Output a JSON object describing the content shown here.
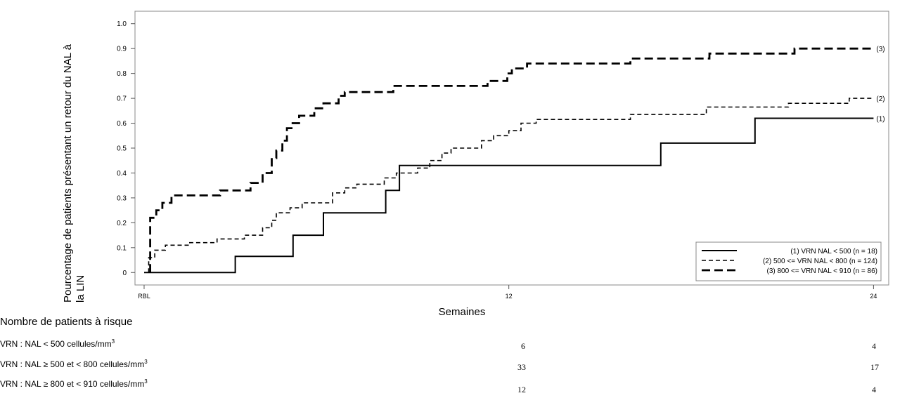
{
  "chart_data": {
    "type": "line",
    "step": true,
    "xlabel": "Semaines",
    "ylabel_line1": "Pourcentage de patients présentant un retour du NAL à",
    "ylabel_line2": "la LIN",
    "xticks": [
      {
        "value": 0,
        "label": "RBL"
      },
      {
        "value": 12,
        "label": "12"
      },
      {
        "value": 24,
        "label": "24"
      }
    ],
    "xlim": [
      -0.3,
      24.5
    ],
    "ylim": [
      -0.05,
      1.05
    ],
    "yticks": [
      {
        "value": 0,
        "label": "0"
      },
      {
        "value": 0.1,
        "label": "0.1"
      },
      {
        "value": 0.2,
        "label": "0.2"
      },
      {
        "value": 0.3,
        "label": "0.3"
      },
      {
        "value": 0.4,
        "label": "0.4"
      },
      {
        "value": 0.5,
        "label": "0.5"
      },
      {
        "value": 0.6,
        "label": "0.6"
      },
      {
        "value": 0.7,
        "label": "0.7"
      },
      {
        "value": 0.8,
        "label": "0.8"
      },
      {
        "value": 0.9,
        "label": "0.9"
      },
      {
        "value": 1.0,
        "label": "1.0"
      }
    ],
    "grid": false,
    "legend_position": "bottom-right",
    "series": [
      {
        "name": "(1) VRN NAL < 500 (n = 18)",
        "end_label": "(1)",
        "style": "solid",
        "points": [
          [
            0,
            0
          ],
          [
            3,
            0
          ],
          [
            3,
            0.065
          ],
          [
            4.9,
            0.065
          ],
          [
            4.9,
            0.15
          ],
          [
            5.9,
            0.15
          ],
          [
            5.9,
            0.24
          ],
          [
            7.95,
            0.24
          ],
          [
            7.95,
            0.33
          ],
          [
            8.4,
            0.33
          ],
          [
            8.4,
            0.43
          ],
          [
            17,
            0.43
          ],
          [
            17,
            0.52
          ],
          [
            20.1,
            0.52
          ],
          [
            20.1,
            0.62
          ],
          [
            24,
            0.62
          ]
        ]
      },
      {
        "name": "(2) 500 <= VRN NAL < 800 (n = 124)",
        "end_label": "(2)",
        "style": "short-dash",
        "points": [
          [
            0.15,
            0
          ],
          [
            0.15,
            0.06
          ],
          [
            0.35,
            0.06
          ],
          [
            0.35,
            0.09
          ],
          [
            0.7,
            0.09
          ],
          [
            0.7,
            0.11
          ],
          [
            1.5,
            0.11
          ],
          [
            1.5,
            0.12
          ],
          [
            2.4,
            0.12
          ],
          [
            2.4,
            0.135
          ],
          [
            3.3,
            0.135
          ],
          [
            3.3,
            0.15
          ],
          [
            3.9,
            0.15
          ],
          [
            3.9,
            0.18
          ],
          [
            4.2,
            0.18
          ],
          [
            4.2,
            0.21
          ],
          [
            4.35,
            0.21
          ],
          [
            4.35,
            0.24
          ],
          [
            4.8,
            0.24
          ],
          [
            4.8,
            0.26
          ],
          [
            5.2,
            0.26
          ],
          [
            5.2,
            0.28
          ],
          [
            6.2,
            0.28
          ],
          [
            6.2,
            0.32
          ],
          [
            6.6,
            0.32
          ],
          [
            6.6,
            0.34
          ],
          [
            7.0,
            0.34
          ],
          [
            7.0,
            0.355
          ],
          [
            7.9,
            0.355
          ],
          [
            7.9,
            0.38
          ],
          [
            8.3,
            0.38
          ],
          [
            8.3,
            0.4
          ],
          [
            9.0,
            0.4
          ],
          [
            9.0,
            0.42
          ],
          [
            9.4,
            0.42
          ],
          [
            9.4,
            0.45
          ],
          [
            9.8,
            0.45
          ],
          [
            9.8,
            0.48
          ],
          [
            10.1,
            0.48
          ],
          [
            10.1,
            0.5
          ],
          [
            11.1,
            0.5
          ],
          [
            11.1,
            0.53
          ],
          [
            11.5,
            0.53
          ],
          [
            11.5,
            0.55
          ],
          [
            12.0,
            0.55
          ],
          [
            12.0,
            0.57
          ],
          [
            12.4,
            0.57
          ],
          [
            12.4,
            0.6
          ],
          [
            12.9,
            0.6
          ],
          [
            12.9,
            0.615
          ],
          [
            16.0,
            0.615
          ],
          [
            16.0,
            0.635
          ],
          [
            18.5,
            0.635
          ],
          [
            18.5,
            0.665
          ],
          [
            21.2,
            0.665
          ],
          [
            21.2,
            0.68
          ],
          [
            23.2,
            0.68
          ],
          [
            23.2,
            0.7
          ],
          [
            24,
            0.7
          ]
        ]
      },
      {
        "name": "(3) 800 <= VRN NAL < 910 (n = 86)",
        "end_label": "(3)",
        "style": "long-dash",
        "points": [
          [
            0.2,
            0
          ],
          [
            0.2,
            0.22
          ],
          [
            0.4,
            0.22
          ],
          [
            0.4,
            0.25
          ],
          [
            0.6,
            0.25
          ],
          [
            0.6,
            0.28
          ],
          [
            0.9,
            0.28
          ],
          [
            0.9,
            0.31
          ],
          [
            2.5,
            0.31
          ],
          [
            2.5,
            0.33
          ],
          [
            3.5,
            0.33
          ],
          [
            3.5,
            0.36
          ],
          [
            3.9,
            0.36
          ],
          [
            3.9,
            0.4
          ],
          [
            4.2,
            0.4
          ],
          [
            4.2,
            0.46
          ],
          [
            4.35,
            0.46
          ],
          [
            4.35,
            0.49
          ],
          [
            4.55,
            0.49
          ],
          [
            4.55,
            0.53
          ],
          [
            4.7,
            0.53
          ],
          [
            4.7,
            0.58
          ],
          [
            4.85,
            0.58
          ],
          [
            4.85,
            0.6
          ],
          [
            5.1,
            0.6
          ],
          [
            5.1,
            0.63
          ],
          [
            5.6,
            0.63
          ],
          [
            5.6,
            0.66
          ],
          [
            5.9,
            0.66
          ],
          [
            5.9,
            0.68
          ],
          [
            6.4,
            0.68
          ],
          [
            6.4,
            0.71
          ],
          [
            6.6,
            0.71
          ],
          [
            6.6,
            0.725
          ],
          [
            8.2,
            0.725
          ],
          [
            8.2,
            0.75
          ],
          [
            11.3,
            0.75
          ],
          [
            11.3,
            0.77
          ],
          [
            11.95,
            0.77
          ],
          [
            11.95,
            0.8
          ],
          [
            12.1,
            0.8
          ],
          [
            12.1,
            0.82
          ],
          [
            12.6,
            0.82
          ],
          [
            12.6,
            0.84
          ],
          [
            16.0,
            0.84
          ],
          [
            16.0,
            0.86
          ],
          [
            18.6,
            0.86
          ],
          [
            18.6,
            0.88
          ],
          [
            21.4,
            0.88
          ],
          [
            21.4,
            0.9
          ],
          [
            24,
            0.9
          ]
        ]
      }
    ]
  },
  "risk_table": {
    "title": "Nombre de patients à risque",
    "rows": [
      {
        "label": "VRN : NAL < 500 cellules/mm",
        "sup": "3",
        "values": [
          "6",
          "4"
        ]
      },
      {
        "label": "VRN : NAL ≥ 500 et < 800 cellules/mm",
        "sup": "3",
        "values": [
          "33",
          "17"
        ]
      },
      {
        "label": "VRN : NAL ≥ 800 et < 910 cellules/mm",
        "sup": "3",
        "values": [
          "12",
          "4"
        ]
      }
    ]
  }
}
